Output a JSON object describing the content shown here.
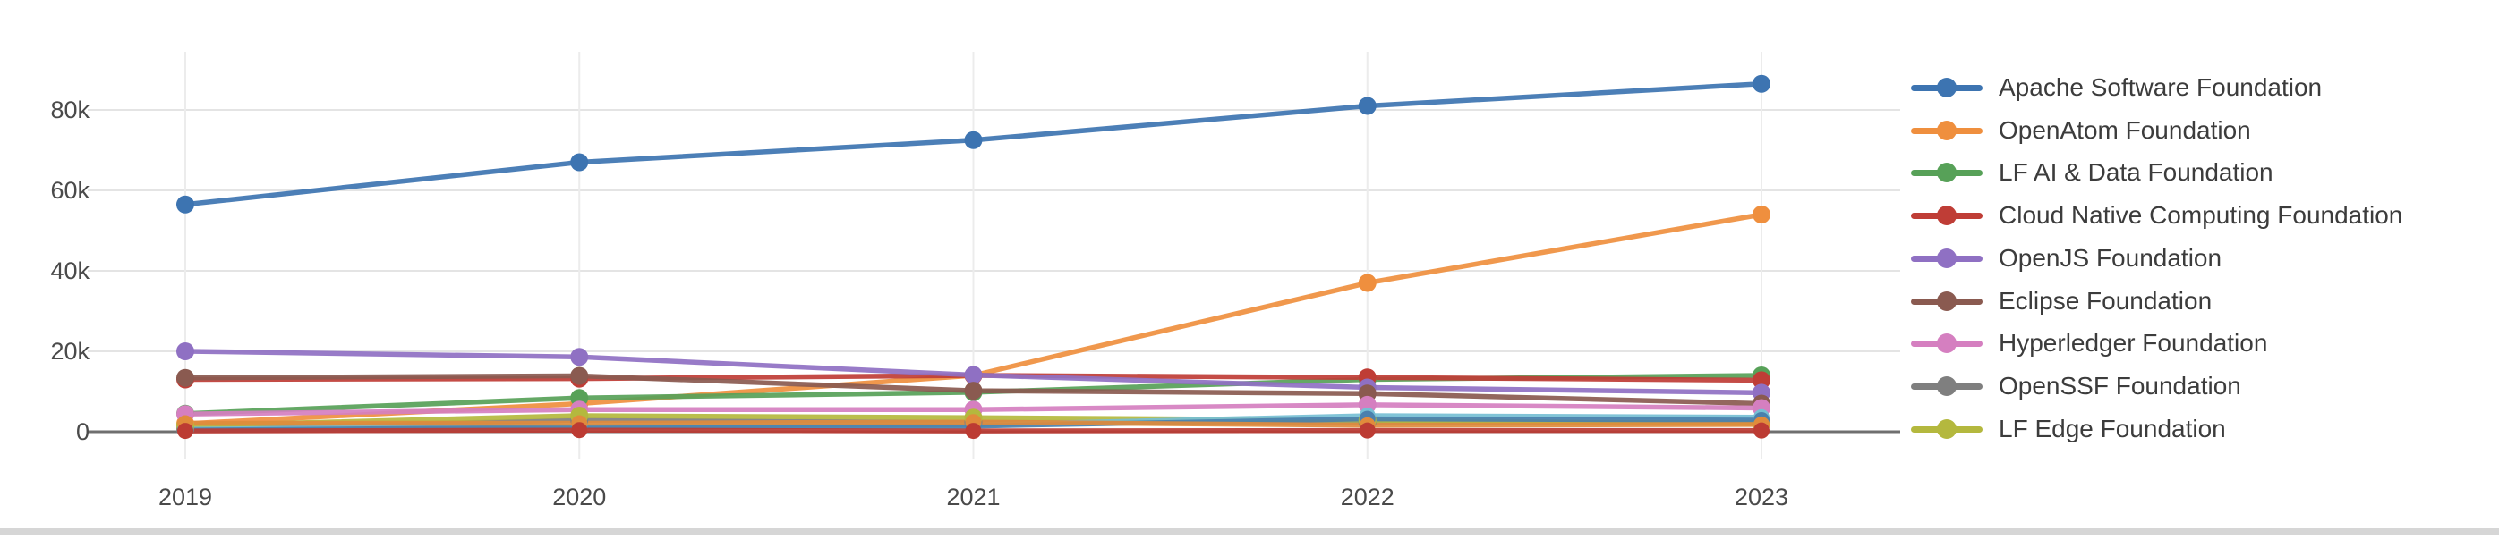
{
  "chart_data": {
    "type": "line",
    "title": "",
    "x_categories": [
      "2019",
      "2020",
      "2021",
      "2022",
      "2023"
    ],
    "y_ticks": [
      {
        "value": 0,
        "label": "0"
      },
      {
        "value": 20000,
        "label": "20k"
      },
      {
        "value": 40000,
        "label": "40k"
      },
      {
        "value": 60000,
        "label": "60k"
      },
      {
        "value": 80000,
        "label": "80k"
      }
    ],
    "ylim": [
      0,
      94000
    ],
    "grid": true,
    "legend_position": "right",
    "series": [
      {
        "name": "Apache Software Foundation",
        "color": "#3d74b1",
        "in_legend": true,
        "values": [
          56500,
          67000,
          72500,
          81000,
          86500
        ]
      },
      {
        "name": "OpenAtom Foundation",
        "color": "#ef8f3e",
        "in_legend": true,
        "values": [
          2000,
          7000,
          14000,
          37000,
          54000
        ]
      },
      {
        "name": "LF AI & Data Foundation",
        "color": "#57a158",
        "in_legend": true,
        "values": [
          4500,
          8400,
          9800,
          13000,
          14000
        ]
      },
      {
        "name": "Cloud Native Computing Foundation",
        "color": "#bf3d36",
        "in_legend": true,
        "values": [
          13000,
          13200,
          14000,
          13500,
          12800
        ]
      },
      {
        "name": "OpenJS Foundation",
        "color": "#8f70c3",
        "in_legend": true,
        "values": [
          20000,
          18600,
          14100,
          11000,
          9700
        ]
      },
      {
        "name": "Eclipse Foundation",
        "color": "#8a5a50",
        "in_legend": true,
        "values": [
          13400,
          13900,
          10200,
          9500,
          7000
        ]
      },
      {
        "name": "Hyperledger Foundation",
        "color": "#d57fc0",
        "in_legend": true,
        "values": [
          4400,
          5500,
          5500,
          6700,
          5900
        ]
      },
      {
        "name": "OpenSSF Foundation",
        "color": "#7f7f7f",
        "in_legend": true,
        "values": [
          700,
          2900,
          2300,
          2400,
          2400
        ]
      },
      {
        "name": "LF Edge Foundation",
        "color": "#b4b83e",
        "in_legend": true,
        "values": [
          1500,
          4000,
          3500,
          2900,
          2000
        ]
      },
      {
        "name": "",
        "color": "#76bfd4",
        "in_legend": false,
        "values": [
          600,
          1500,
          1700,
          4000,
          3600
        ]
      },
      {
        "name": "",
        "color": "#4a80ad",
        "in_legend": false,
        "values": [
          400,
          1100,
          1400,
          3200,
          2900
        ]
      },
      {
        "name": "",
        "color": "#e08b3c",
        "in_legend": false,
        "values": [
          2100,
          2100,
          2400,
          1600,
          1800
        ]
      },
      {
        "name": "",
        "color": "#bc3b33",
        "in_legend": false,
        "values": [
          200,
          400,
          200,
          300,
          300
        ]
      }
    ]
  }
}
